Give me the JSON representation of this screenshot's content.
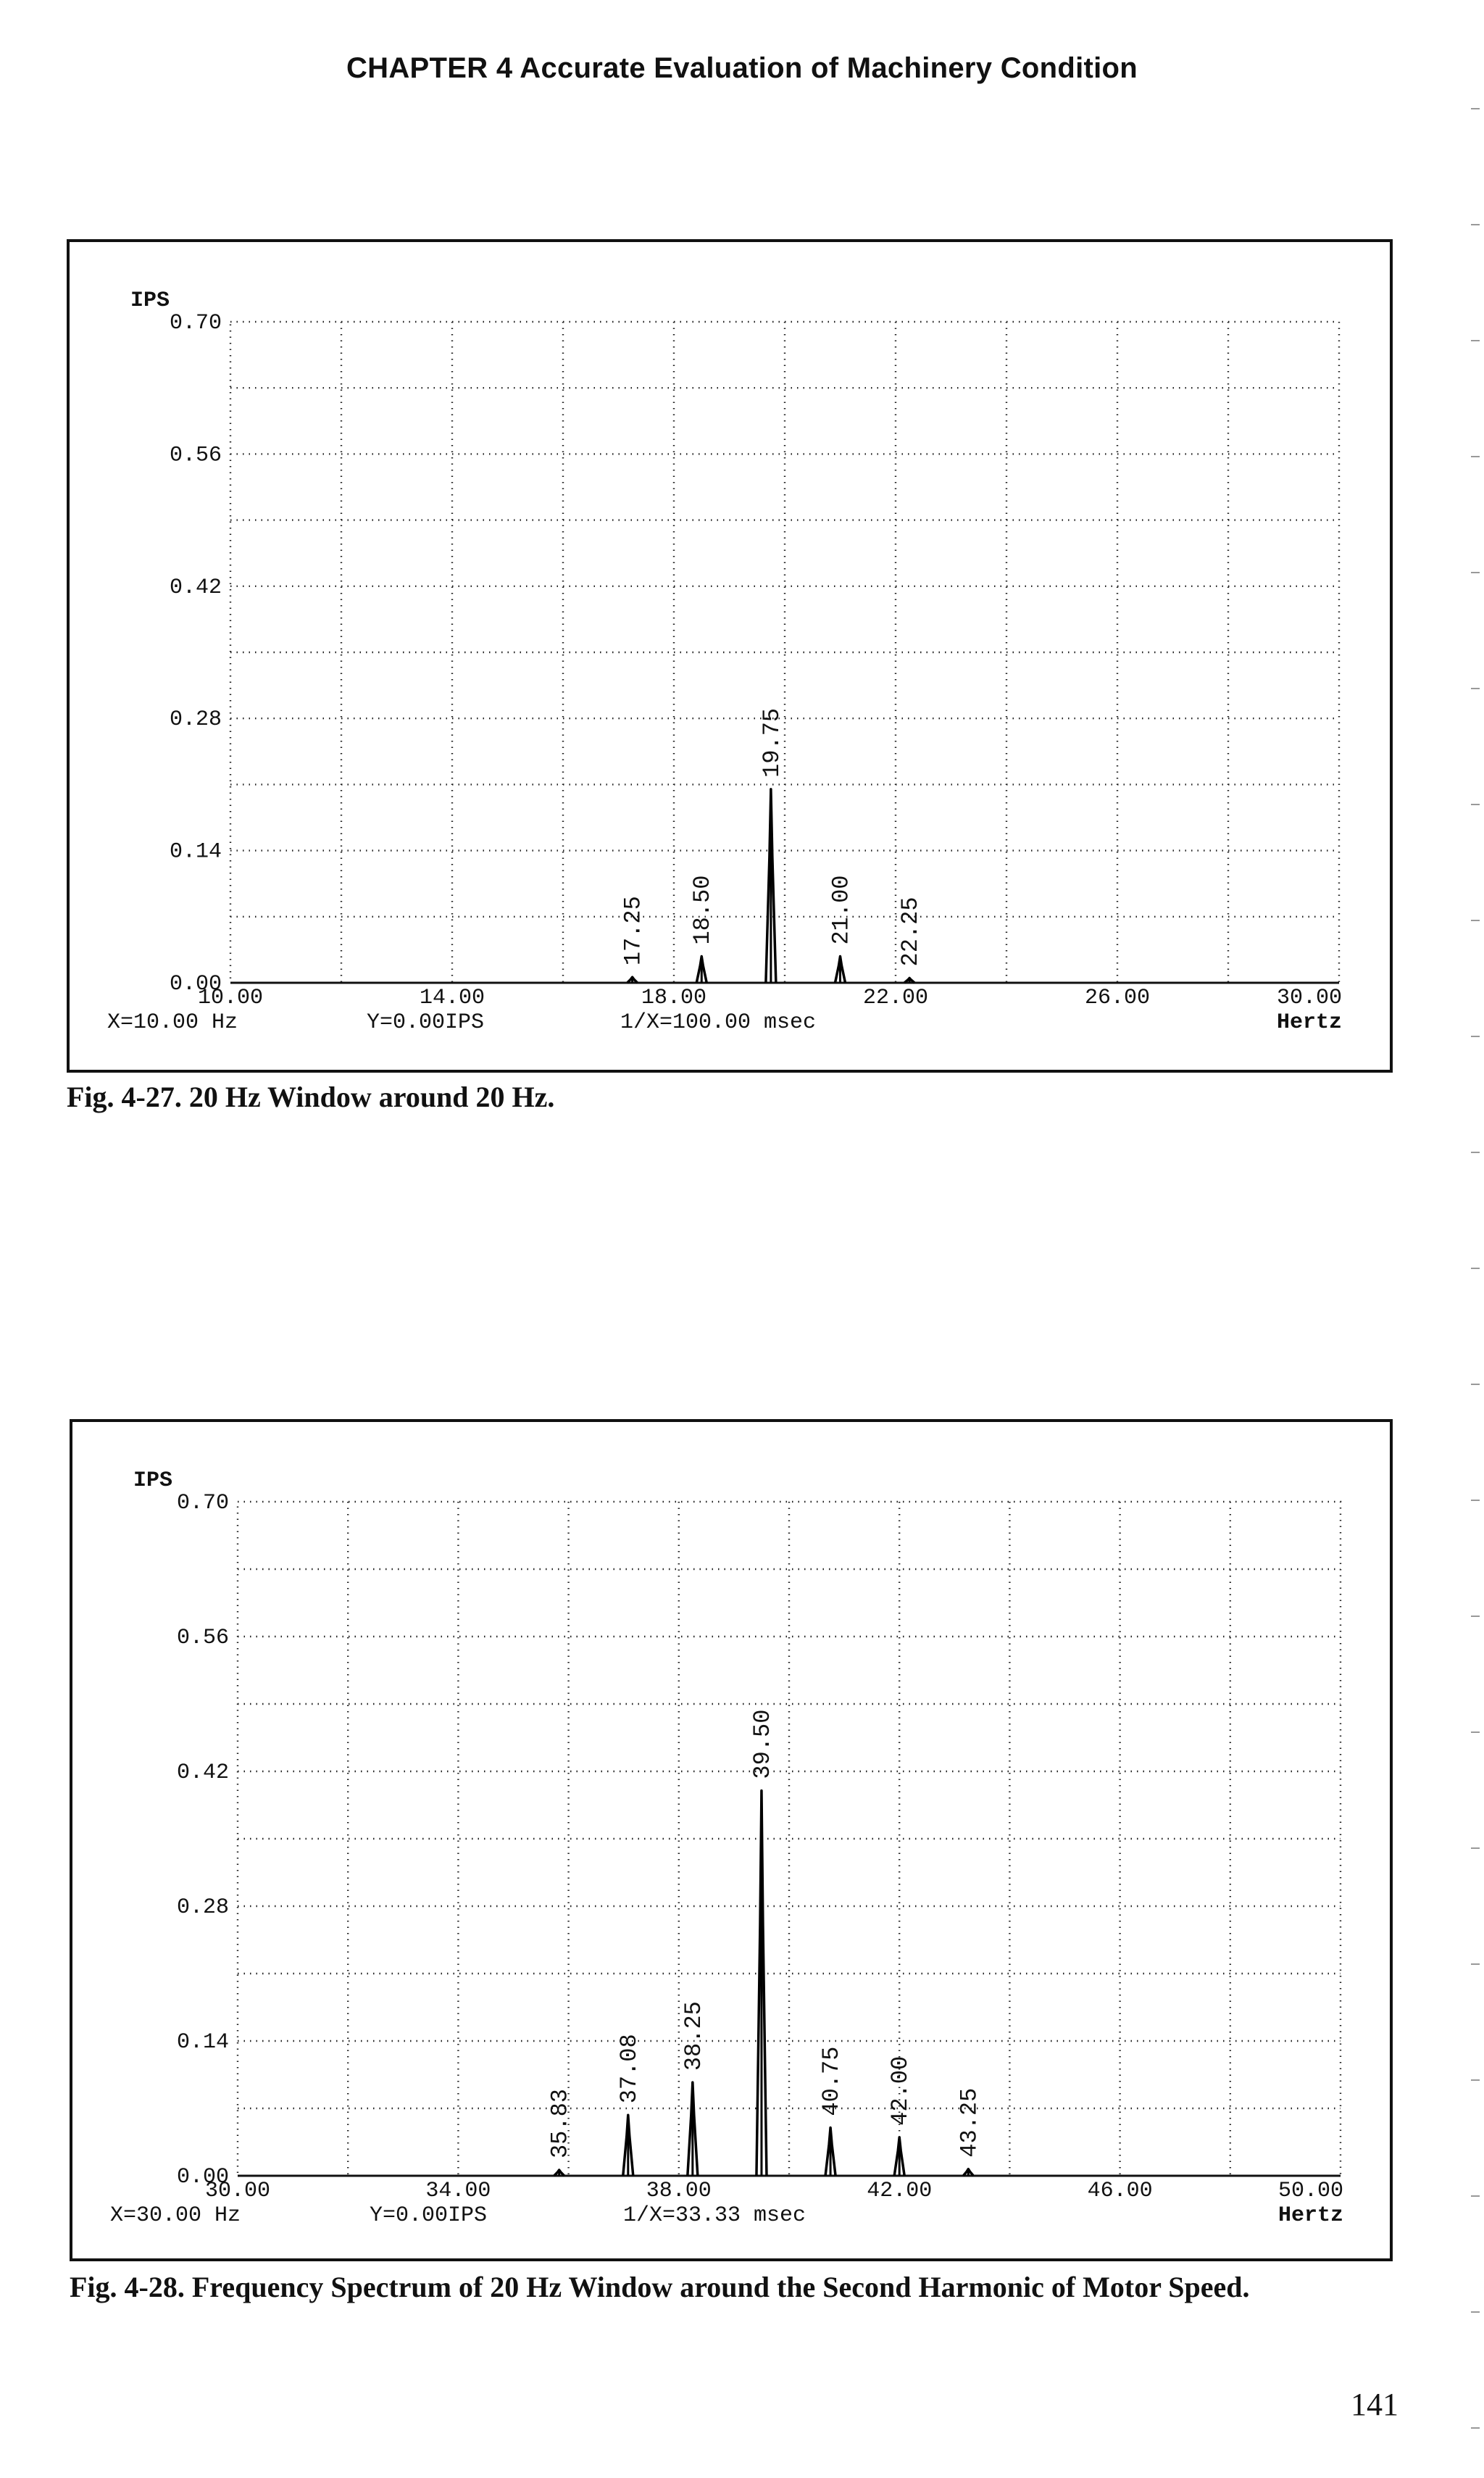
{
  "page": {
    "header": "CHAPTER 4 Accurate Evaluation of Machinery Condition",
    "page_number": "141"
  },
  "chart_data": [
    {
      "type": "line",
      "caption": "Fig. 4-27. 20 Hz Window around 20 Hz.",
      "ylabel": "IPS",
      "xlabel": "Hertz",
      "xlim": [
        10,
        30
      ],
      "ylim": [
        0,
        0.7
      ],
      "x_ticks": [
        "10.00",
        "14.00",
        "18.00",
        "22.00",
        "26.00",
        "30.00"
      ],
      "y_ticks": [
        "0.70",
        "0.56",
        "0.42",
        "0.28",
        "0.14",
        "0.00"
      ],
      "grid": true,
      "status": {
        "x": "X=10.00 Hz",
        "y": "Y=0.00IPS",
        "period": "1/X=100.00 msec"
      },
      "peaks": [
        {
          "x": 17.25,
          "y": 0.006,
          "label": "17.25"
        },
        {
          "x": 18.5,
          "y": 0.028,
          "label": "18.50"
        },
        {
          "x": 19.75,
          "y": 0.205,
          "label": "19.75"
        },
        {
          "x": 21.0,
          "y": 0.028,
          "label": "21.00"
        },
        {
          "x": 22.25,
          "y": 0.005,
          "label": "22.25"
        }
      ]
    },
    {
      "type": "line",
      "caption": "Fig. 4-28. Frequency Spectrum of 20 Hz Window around the Second Harmonic of Motor Speed.",
      "ylabel": "IPS",
      "xlabel": "Hertz",
      "xlim": [
        30,
        50
      ],
      "ylim": [
        0,
        0.7
      ],
      "x_ticks": [
        "30.00",
        "34.00",
        "38.00",
        "42.00",
        "46.00",
        "50.00"
      ],
      "y_ticks": [
        "0.70",
        "0.56",
        "0.42",
        "0.28",
        "0.14",
        "0.00"
      ],
      "grid": true,
      "status": {
        "x": "X=30.00 Hz",
        "y": "Y=0.00IPS",
        "period": "1/X=33.33 msec"
      },
      "peaks": [
        {
          "x": 35.83,
          "y": 0.006,
          "label": "35.83"
        },
        {
          "x": 37.08,
          "y": 0.063,
          "label": "37.08"
        },
        {
          "x": 38.25,
          "y": 0.097,
          "label": "38.25"
        },
        {
          "x": 39.5,
          "y": 0.4,
          "label": "39.50"
        },
        {
          "x": 40.75,
          "y": 0.05,
          "label": "40.75"
        },
        {
          "x": 42.0,
          "y": 0.04,
          "label": "42.00"
        },
        {
          "x": 43.25,
          "y": 0.007,
          "label": "43.25"
        }
      ]
    }
  ]
}
